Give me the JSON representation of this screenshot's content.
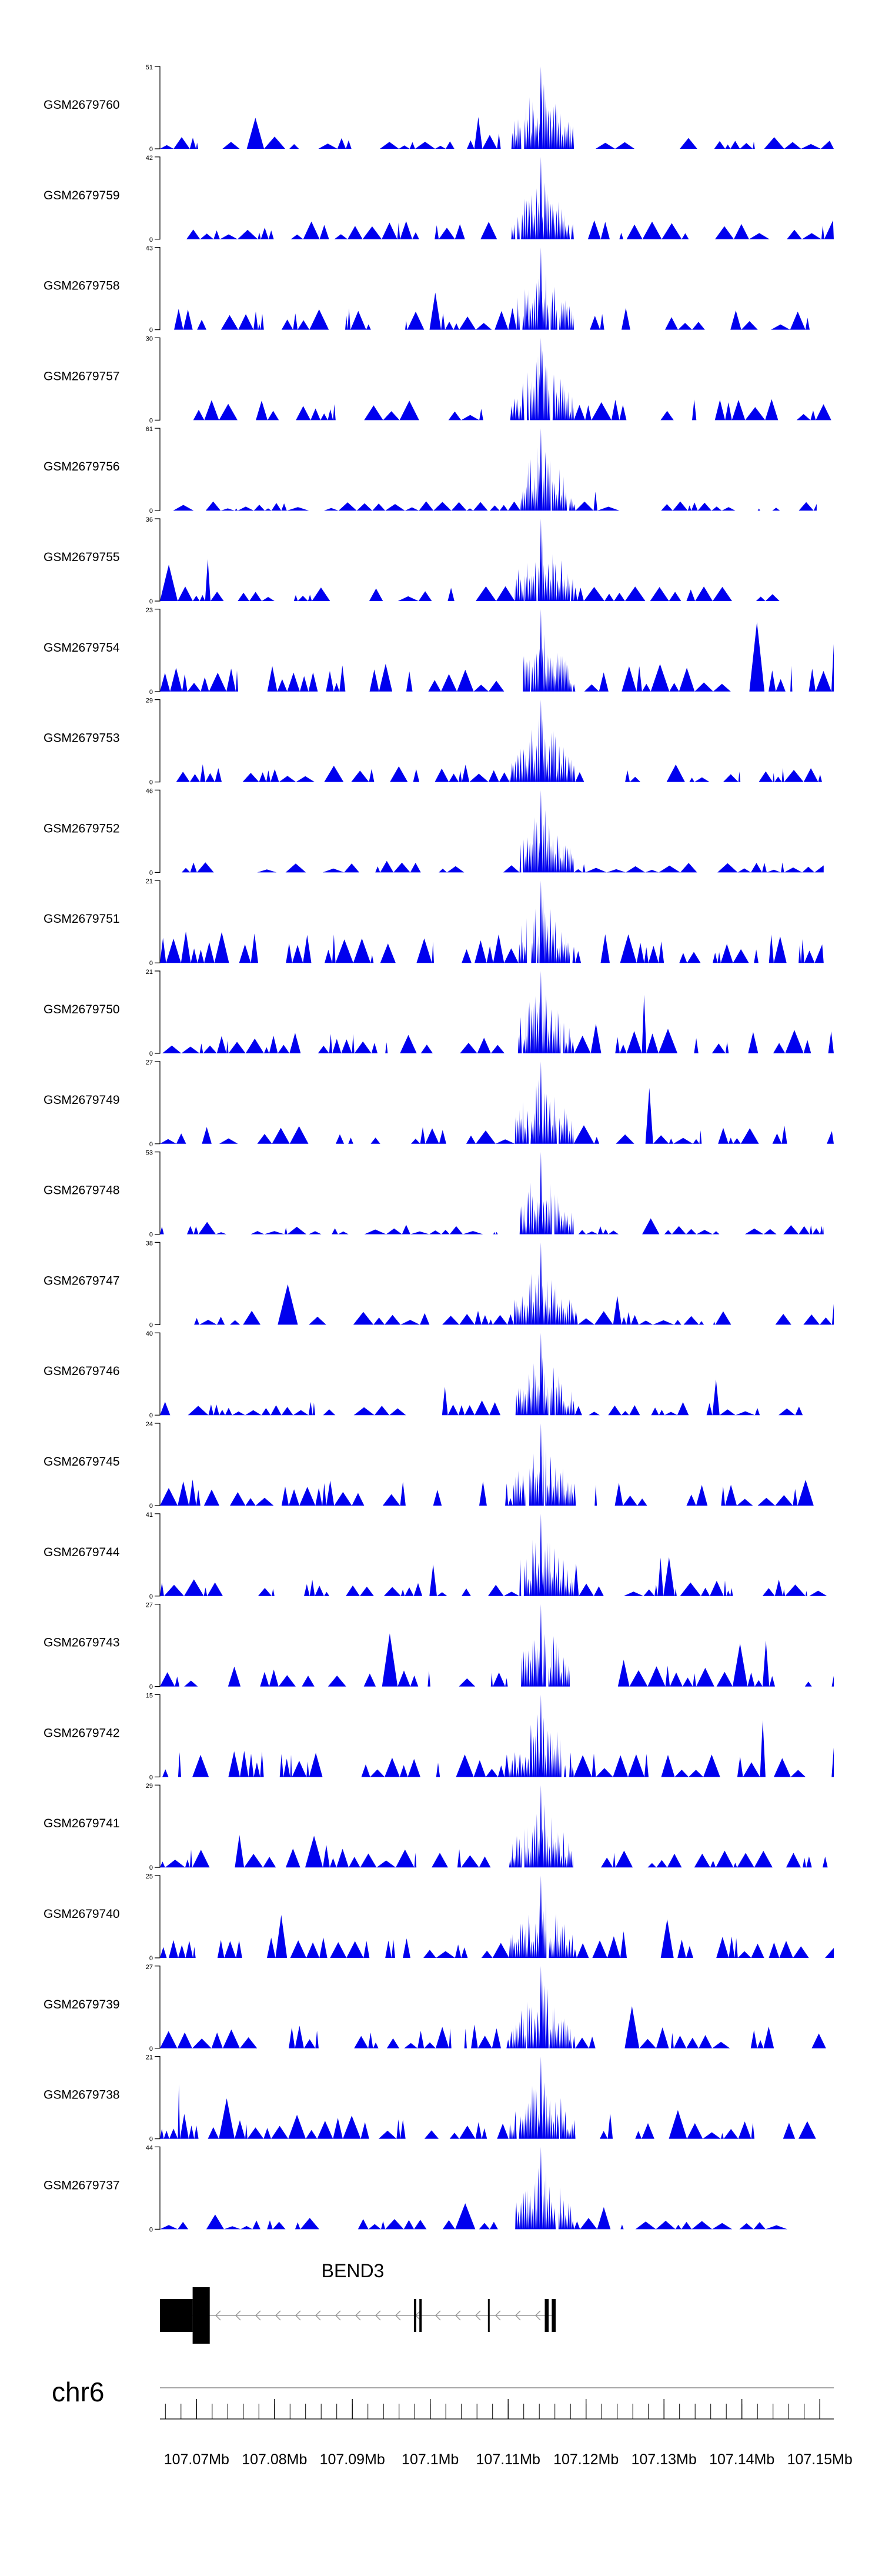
{
  "chart_data": {
    "type": "area",
    "title": "",
    "chromosome": "chr6",
    "xlim": [
      107.0653,
      107.1518
    ],
    "x_ticks": [
      107.07,
      107.08,
      107.09,
      107.1,
      107.11,
      107.12,
      107.13,
      107.14,
      107.15
    ],
    "x_tick_labels": [
      "107.07Mb",
      "107.08Mb",
      "107.09Mb",
      "107.1Mb",
      "107.11Mb",
      "107.12Mb",
      "107.13Mb",
      "107.14Mb",
      "107.15Mb"
    ],
    "minor_tick_step": 0.002,
    "series_color": "#0000ee",
    "peak_summit": 107.1142,
    "tracks": [
      {
        "name": "GSM2679760",
        "ymin": 0,
        "ymax": 51,
        "peak": 51,
        "coverage_end": 107.1518,
        "base": 0.13
      },
      {
        "name": "GSM2679759",
        "ymin": 0,
        "ymax": 42,
        "peak": 42,
        "coverage_end": 107.1518,
        "base": 0.2
      },
      {
        "name": "GSM2679758",
        "ymin": 0,
        "ymax": 43,
        "peak": 43,
        "coverage_end": 107.1505,
        "base": 0.24
      },
      {
        "name": "GSM2679757",
        "ymin": 0,
        "ymax": 30,
        "peak": 30,
        "coverage_end": 107.1518,
        "base": 0.22
      },
      {
        "name": "GSM2679756",
        "ymin": 0,
        "ymax": 61,
        "peak": 61,
        "coverage_end": 107.1496,
        "base": 0.1
      },
      {
        "name": "GSM2679755",
        "ymin": 0,
        "ymax": 36,
        "peak": 36,
        "coverage_end": 107.1462,
        "base": 0.16
      },
      {
        "name": "GSM2679754",
        "ymin": 0,
        "ymax": 23,
        "peak": 23,
        "coverage_end": 107.1518,
        "base": 0.3
      },
      {
        "name": "GSM2679753",
        "ymin": 0,
        "ymax": 29,
        "peak": 29,
        "coverage_end": 107.1518,
        "base": 0.2
      },
      {
        "name": "GSM2679752",
        "ymin": 0,
        "ymax": 46,
        "peak": 46,
        "coverage_end": 107.1505,
        "base": 0.12
      },
      {
        "name": "GSM2679751",
        "ymin": 0,
        "ymax": 21,
        "peak": 21,
        "coverage_end": 107.1505,
        "base": 0.34
      },
      {
        "name": "GSM2679750",
        "ymin": 0,
        "ymax": 21,
        "peak": 21,
        "coverage_end": 107.1518,
        "base": 0.26
      },
      {
        "name": "GSM2679749",
        "ymin": 0,
        "ymax": 27,
        "peak": 27,
        "coverage_end": 107.1518,
        "base": 0.2
      },
      {
        "name": "GSM2679748",
        "ymin": 0,
        "ymax": 53,
        "peak": 53,
        "coverage_end": 107.1505,
        "base": 0.1
      },
      {
        "name": "GSM2679747",
        "ymin": 0,
        "ymax": 38,
        "peak": 38,
        "coverage_end": 107.1518,
        "base": 0.15
      },
      {
        "name": "GSM2679746",
        "ymin": 0,
        "ymax": 40,
        "peak": 40,
        "coverage_end": 107.1496,
        "base": 0.16
      },
      {
        "name": "GSM2679745",
        "ymin": 0,
        "ymax": 24,
        "peak": 24,
        "coverage_end": 107.1518,
        "base": 0.28
      },
      {
        "name": "GSM2679744",
        "ymin": 0,
        "ymax": 41,
        "peak": 41,
        "coverage_end": 107.1518,
        "base": 0.18
      },
      {
        "name": "GSM2679743",
        "ymin": 0,
        "ymax": 27,
        "peak": 27,
        "coverage_end": 107.1518,
        "base": 0.22
      },
      {
        "name": "GSM2679742",
        "ymin": 0,
        "ymax": 15,
        "peak": 15,
        "coverage_end": 107.1518,
        "base": 0.34
      },
      {
        "name": "GSM2679741",
        "ymin": 0,
        "ymax": 29,
        "peak": 29,
        "coverage_end": 107.1518,
        "base": 0.2
      },
      {
        "name": "GSM2679740",
        "ymin": 0,
        "ymax": 25,
        "peak": 25,
        "coverage_end": 107.1518,
        "base": 0.24
      },
      {
        "name": "GSM2679739",
        "ymin": 0,
        "ymax": 27,
        "peak": 27,
        "coverage_end": 107.1518,
        "base": 0.24
      },
      {
        "name": "GSM2679738",
        "ymin": 0,
        "ymax": 21,
        "peak": 21,
        "coverage_end": 107.1518,
        "base": 0.28
      },
      {
        "name": "GSM2679737",
        "ymin": 0,
        "ymax": 44,
        "peak": 44,
        "coverage_end": 107.1518,
        "base": 0.12
      }
    ],
    "gene": {
      "name": "BEND3",
      "strand": "-",
      "start": 107.0653,
      "end": 107.1158,
      "exons": [
        {
          "start": 107.0653,
          "end": 107.0695,
          "kind": "coding"
        },
        {
          "start": 107.0695,
          "end": 107.0717,
          "kind": "utr"
        },
        {
          "start": 107.0979,
          "end": 107.0982,
          "kind": "coding"
        },
        {
          "start": 107.0986,
          "end": 107.0989,
          "kind": "coding"
        },
        {
          "start": 107.1074,
          "end": 107.1076,
          "kind": "coding"
        },
        {
          "start": 107.1147,
          "end": 107.1152,
          "kind": "coding"
        },
        {
          "start": 107.1156,
          "end": 107.1161,
          "kind": "coding"
        }
      ]
    }
  }
}
